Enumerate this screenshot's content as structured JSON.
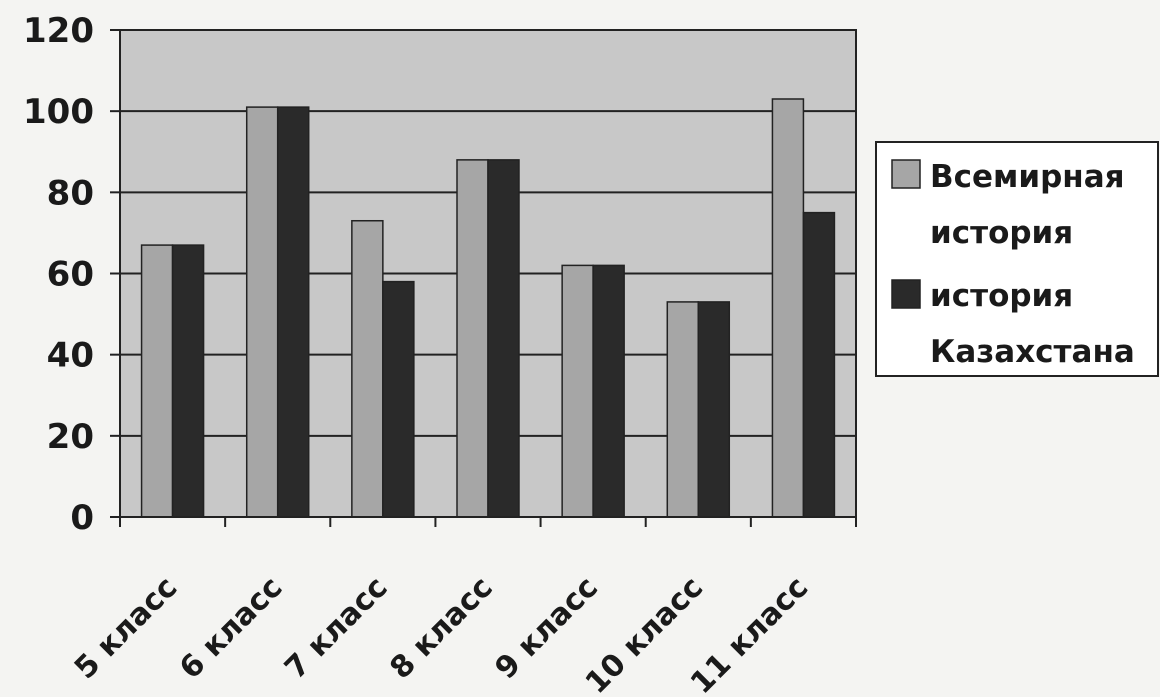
{
  "chart_data": {
    "type": "bar",
    "categories": [
      "5 класс",
      "6 класс",
      "7 класс",
      "8 класс",
      "9 класс",
      "10 класс",
      "11 класс"
    ],
    "series": [
      {
        "name": "Всемирная история",
        "values": [
          67,
          101,
          73,
          88,
          62,
          53,
          103
        ],
        "color": "#a6a6a6"
      },
      {
        "name": "история Казахстана",
        "values": [
          67,
          101,
          58,
          88,
          62,
          53,
          75
        ],
        "color": "#2a2a2a"
      }
    ],
    "yticks": [
      0,
      20,
      40,
      60,
      80,
      100,
      120
    ],
    "ylim": [
      0,
      120
    ],
    "grid": true,
    "legend_position": "right",
    "legend_lines": [
      [
        "Всемирная",
        "история"
      ],
      [
        "история",
        "Казахстана"
      ]
    ],
    "plot_background": "#c8c8c8"
  }
}
